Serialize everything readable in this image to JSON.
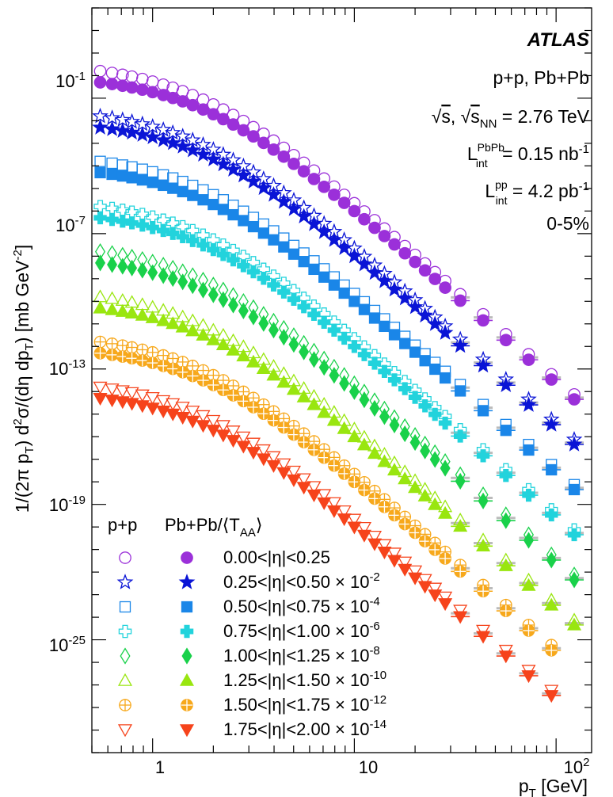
{
  "chart_data": {
    "type": "scatter",
    "x_scale": "log",
    "y_scale": "log",
    "xlim": [
      0.5,
      150
    ],
    "ylim": [
      1e-30,
      1000.0
    ],
    "x_ticks": [
      {
        "value": 1,
        "label": "1"
      },
      {
        "value": 10,
        "label": "10"
      },
      {
        "value": 100,
        "label": "10",
        "sup": "2"
      }
    ],
    "y_ticks": [
      {
        "value": 0.1,
        "base": "10",
        "exp": "-1"
      },
      {
        "value": 1e-07,
        "base": "10",
        "exp": "-7"
      },
      {
        "value": 1e-13,
        "base": "10",
        "exp": "-13"
      },
      {
        "value": 1e-19,
        "base": "10",
        "exp": "-19"
      },
      {
        "value": 1e-25,
        "base": "10",
        "exp": "-25"
      }
    ],
    "xlabel": {
      "main": "p",
      "sub": "T",
      "rest": " [GeV]"
    },
    "ylabel": {
      "p1": "1/(2π p",
      "s1": "T",
      "p2": ") d",
      "e1": "2",
      "p3": "σ/(dη dp",
      "s2": "T",
      "p4": ") [mb GeV",
      "e2": "-2",
      "p5": "]"
    },
    "annotations": {
      "experiment": "ATLAS",
      "systems": "p+p, Pb+Pb",
      "energy": {
        "sqrt1": "s",
        "mid": ", ",
        "sqrt2": "s",
        "sub2": "NN",
        "rest": " = 2.76 TeV"
      },
      "lumi_pbpb": {
        "L": "L",
        "sup": "PbPb",
        "sub": "int",
        "rest": " = 0.15 nb",
        "unit_exp": "-1"
      },
      "lumi_pp": {
        "L": "L",
        "sup": "pp",
        "sub": "int",
        "rest": " = 4.2 pb",
        "unit_exp": "-1"
      },
      "centrality": "0-5%"
    },
    "legend": {
      "placement": "bottom-left",
      "header_pp": "p+p",
      "header_pbpb_main": "Pb+Pb/⟨T",
      "header_pbpb_sub": "AA",
      "header_pbpb_end": "⟩"
    },
    "x": [
      0.55,
      0.63,
      0.71,
      0.79,
      0.89,
      1.0,
      1.13,
      1.26,
      1.41,
      1.58,
      1.78,
      2.0,
      2.24,
      2.51,
      2.82,
      3.16,
      3.55,
      3.98,
      4.47,
      5.01,
      5.62,
      6.31,
      7.08,
      7.94,
      8.91,
      10.0,
      11.2,
      12.6,
      14.1,
      15.8,
      17.8,
      20.0,
      22.4,
      25.1,
      28.2,
      33.5,
      43.5,
      56.4,
      73.1,
      94.8,
      123.0,
      160.0
    ],
    "series": [
      {
        "eta": "0.00<|η|<0.25",
        "scale": "",
        "color": "#9b30d9",
        "open_marker": "circle",
        "filled_marker": "circle",
        "y_top": -0.3,
        "last_index": 41
      },
      {
        "eta": "0.25<|η|<0.50",
        "scale": "-2",
        "color": "#0a14d6",
        "open_marker": "star",
        "filled_marker": "star",
        "y_top": -2.3,
        "last_index": 41
      },
      {
        "eta": "0.50<|η|<0.75",
        "scale": "-4",
        "color": "#1a86e8",
        "open_marker": "square",
        "filled_marker": "square",
        "y_top": -4.3,
        "last_index": 41
      },
      {
        "eta": "0.75<|η|<1.00",
        "scale": "-6",
        "color": "#22d3dc",
        "open_marker": "cross",
        "filled_marker": "cross",
        "y_top": -6.3,
        "last_index": 40
      },
      {
        "eta": "1.00<|η|<1.25",
        "scale": "-8",
        "color": "#19d14a",
        "open_marker": "diamond",
        "filled_marker": "diamond",
        "y_top": -8.3,
        "last_index": 40
      },
      {
        "eta": "1.25<|η|<1.50",
        "scale": "-10",
        "color": "#99e60f",
        "open_marker": "triangle-up",
        "filled_marker": "triangle-up",
        "y_top": -10.3,
        "last_index": 40
      },
      {
        "eta": "1.50<|η|<1.75",
        "scale": "-12",
        "color": "#f7a81b",
        "open_marker": "circle-plus",
        "filled_marker": "circle-plus",
        "y_top": -12.3,
        "last_index": 39
      },
      {
        "eta": "1.75<|η|<2.00",
        "scale": "-14",
        "color": "#f6431b",
        "open_marker": "triangle-down",
        "filled_marker": "triangle-down",
        "y_top": -14.3,
        "last_index": 39
      }
    ],
    "pp_ratio_log10": 0.5,
    "scale_prefix": "× 10"
  }
}
